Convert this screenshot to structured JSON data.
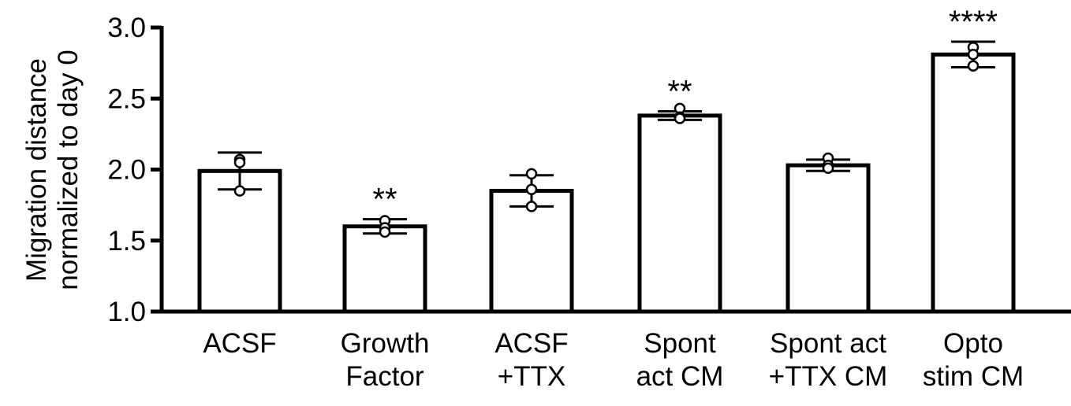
{
  "chart_data": {
    "type": "bar",
    "categories": [
      [
        "ACSF"
      ],
      [
        "Growth",
        "Factor"
      ],
      [
        "ACSF",
        "+TTX"
      ],
      [
        "Spont",
        "act CM"
      ],
      [
        "Spont act",
        "+TTX CM"
      ],
      [
        "Opto",
        "stim CM"
      ]
    ],
    "values": [
      1.99,
      1.6,
      1.85,
      2.38,
      2.03,
      2.81
    ],
    "errors": [
      0.13,
      0.05,
      0.11,
      0.03,
      0.04,
      0.09
    ],
    "points": [
      [
        2.07,
        2.05,
        1.85
      ],
      [
        1.64,
        1.59,
        1.56
      ],
      [
        1.97,
        1.86,
        1.74
      ],
      [
        2.43,
        2.37,
        2.36
      ],
      [
        2.08,
        2.03,
        2.01
      ],
      [
        2.86,
        2.81,
        2.73
      ]
    ],
    "significance": [
      "",
      "**",
      "",
      "**",
      "",
      "****"
    ],
    "ylabel": [
      "Migration distance",
      "normalized to day 0"
    ],
    "xlabel": "",
    "ylim": [
      1.0,
      3.0
    ],
    "yticks": [
      "1.0",
      "1.5",
      "2.0",
      "2.5",
      "3.0"
    ],
    "grid": false,
    "legend": "none",
    "bar_fill": "#ffffff",
    "bar_stroke": "#000000"
  }
}
